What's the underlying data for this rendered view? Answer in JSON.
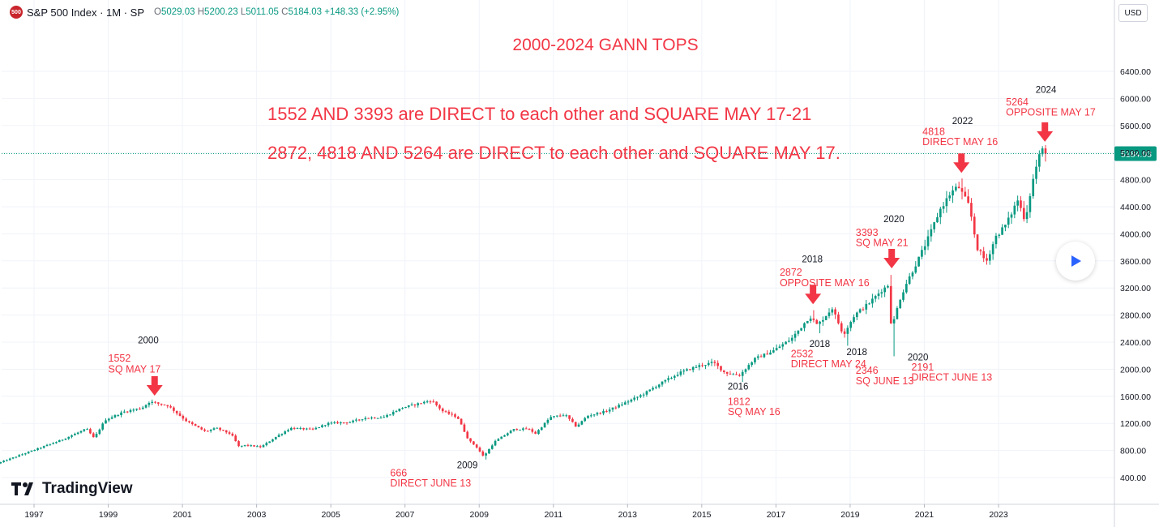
{
  "header": {
    "badge": "500",
    "symbol": "S&P 500 Index · 1M · SP",
    "open_label": "O",
    "open": "5029.03",
    "high_label": "H",
    "high": "5200.23",
    "low_label": "L",
    "low": "5011.05",
    "close_label": "C",
    "close": "5184.03",
    "change": "+148.33 (+2.95%)"
  },
  "currency": "USD",
  "brand": "TradingView",
  "colors": {
    "up": "#089981",
    "down": "#f23645",
    "annotation": "#f23645",
    "last_price": "#089981"
  },
  "chart_data": {
    "type": "candlestick",
    "title": "2000-2024 GANN TOPS",
    "subtitle_lines": [
      "1552 AND 3393 are DIRECT to each other and SQUARE MAY 17-21",
      "2872, 4818 AND 5264 are DIRECT to each other and SQUARE MAY 17."
    ],
    "ylim": [
      200,
      6800
    ],
    "y_ticks": [
      400,
      800,
      1200,
      1600,
      2000,
      2400,
      2800,
      3200,
      3600,
      4000,
      4400,
      4800,
      5200,
      5600,
      6000,
      6400
    ],
    "y_tick_labels": [
      "400.00",
      "800.00",
      "1200.00",
      "1600.00",
      "2000.00",
      "2400.00",
      "2800.00",
      "3200.00",
      "3600.00",
      "4000.00",
      "4400.00",
      "4800.00",
      "5200.00",
      "5600.00",
      "6000.00",
      "6400.00"
    ],
    "x_range": [
      1996.1,
      2025.9
    ],
    "x_ticks": [
      1997,
      1999,
      2001,
      2003,
      2005,
      2007,
      2009,
      2011,
      2013,
      2015,
      2017,
      2019,
      2021,
      2023
    ],
    "x_tick_labels": [
      "1997",
      "1999",
      "2001",
      "2003",
      "2005",
      "2007",
      "2009",
      "2011",
      "2013",
      "2015",
      "2017",
      "2019",
      "2021",
      "2023"
    ],
    "last_price": 5184.03,
    "last_price_label": "5184.03",
    "anchors": [
      [
        1996.1,
        610
      ],
      [
        1997.0,
        790
      ],
      [
        1997.8,
        950
      ],
      [
        1998.5,
        1120
      ],
      [
        1998.7,
        980
      ],
      [
        1999.0,
        1250
      ],
      [
        1999.5,
        1370
      ],
      [
        2000.0,
        1430
      ],
      [
        2000.2,
        1520
      ],
      [
        2000.7,
        1460
      ],
      [
        2001.2,
        1230
      ],
      [
        2001.7,
        1080
      ],
      [
        2002.0,
        1130
      ],
      [
        2002.4,
        1040
      ],
      [
        2002.6,
        860
      ],
      [
        2002.8,
        880
      ],
      [
        2003.2,
        850
      ],
      [
        2003.6,
        1000
      ],
      [
        2004.0,
        1130
      ],
      [
        2004.6,
        1110
      ],
      [
        2005.0,
        1200
      ],
      [
        2005.6,
        1220
      ],
      [
        2006.0,
        1280
      ],
      [
        2006.5,
        1290
      ],
      [
        2007.0,
        1430
      ],
      [
        2007.5,
        1500
      ],
      [
        2007.8,
        1540
      ],
      [
        2008.1,
        1380
      ],
      [
        2008.5,
        1290
      ],
      [
        2008.8,
        950
      ],
      [
        2009.0,
        860
      ],
      [
        2009.2,
        710
      ],
      [
        2009.5,
        930
      ],
      [
        2010.0,
        1110
      ],
      [
        2010.4,
        1120
      ],
      [
        2010.6,
        1050
      ],
      [
        2011.0,
        1290
      ],
      [
        2011.4,
        1330
      ],
      [
        2011.7,
        1150
      ],
      [
        2012.0,
        1310
      ],
      [
        2012.5,
        1380
      ],
      [
        2013.0,
        1500
      ],
      [
        2013.5,
        1630
      ],
      [
        2014.0,
        1800
      ],
      [
        2014.5,
        1950
      ],
      [
        2015.0,
        2050
      ],
      [
        2015.4,
        2100
      ],
      [
        2015.7,
        1950
      ],
      [
        2016.1,
        1910
      ],
      [
        2016.5,
        2150
      ],
      [
        2017.0,
        2270
      ],
      [
        2017.5,
        2450
      ],
      [
        2018.0,
        2780
      ],
      [
        2018.2,
        2650
      ],
      [
        2018.6,
        2900
      ],
      [
        2018.9,
        2510
      ],
      [
        2019.2,
        2800
      ],
      [
        2019.6,
        2980
      ],
      [
        2019.9,
        3150
      ],
      [
        2020.1,
        3240
      ],
      [
        2020.2,
        2590
      ],
      [
        2020.4,
        3000
      ],
      [
        2020.6,
        3270
      ],
      [
        2020.9,
        3600
      ],
      [
        2021.2,
        3950
      ],
      [
        2021.5,
        4350
      ],
      [
        2021.8,
        4610
      ],
      [
        2022.0,
        4700
      ],
      [
        2022.3,
        4400
      ],
      [
        2022.5,
        3800
      ],
      [
        2022.75,
        3580
      ],
      [
        2023.0,
        3950
      ],
      [
        2023.3,
        4150
      ],
      [
        2023.6,
        4500
      ],
      [
        2023.8,
        4200
      ],
      [
        2024.0,
        4770
      ],
      [
        2024.15,
        5100
      ],
      [
        2024.25,
        5250
      ],
      [
        2024.33,
        5184
      ]
    ],
    "highlight_highs": [
      [
        2000.2,
        1552
      ],
      [
        2018.05,
        2872
      ],
      [
        2020.12,
        3393
      ],
      [
        2021.98,
        4818
      ],
      [
        2024.25,
        5264
      ]
    ],
    "highlight_lows": [
      [
        2009.2,
        666
      ],
      [
        2016.1,
        1812
      ],
      [
        2018.2,
        2532
      ],
      [
        2018.95,
        2346
      ],
      [
        2020.2,
        2191
      ]
    ],
    "annotations": [
      {
        "type": "arrow",
        "x": 2000.25,
        "y": 1610
      },
      {
        "type": "text",
        "x": 1999.8,
        "y": 2385,
        "text": "2000",
        "color": "black"
      },
      {
        "type": "text",
        "x": 1999.0,
        "y": 2110,
        "text": "1552",
        "color": "red"
      },
      {
        "type": "text",
        "x": 1999.0,
        "y": 1950,
        "text": "SQ MAY 17",
        "color": "red"
      },
      {
        "type": "text",
        "x": 2008.4,
        "y": 540,
        "text": "2009",
        "color": "black"
      },
      {
        "type": "text",
        "x": 2006.6,
        "y": 420,
        "text": "666",
        "color": "red"
      },
      {
        "type": "text",
        "x": 2006.6,
        "y": 270,
        "text": "DIRECT JUNE 13",
        "color": "red"
      },
      {
        "type": "text",
        "x": 2015.7,
        "y": 1700,
        "text": "2016",
        "color": "black"
      },
      {
        "type": "text",
        "x": 2015.7,
        "y": 1470,
        "text": "1812",
        "color": "red"
      },
      {
        "type": "text",
        "x": 2015.7,
        "y": 1320,
        "text": "SQ MAY 16",
        "color": "red"
      },
      {
        "type": "arrow",
        "x": 2018.0,
        "y": 2960
      },
      {
        "type": "text",
        "x": 2017.7,
        "y": 3580,
        "text": "2018",
        "color": "black"
      },
      {
        "type": "text",
        "x": 2017.1,
        "y": 3380,
        "text": "2872",
        "color": "red"
      },
      {
        "type": "text",
        "x": 2017.1,
        "y": 3225,
        "text": "OPPOSITE MAY 16",
        "color": "red"
      },
      {
        "type": "text",
        "x": 2017.9,
        "y": 2330,
        "text": "2018",
        "color": "black"
      },
      {
        "type": "text",
        "x": 2017.4,
        "y": 2180,
        "text": "2532",
        "color": "red"
      },
      {
        "type": "text",
        "x": 2017.4,
        "y": 2030,
        "text": "DIRECT MAY 24",
        "color": "red"
      },
      {
        "type": "text",
        "x": 2018.9,
        "y": 2210,
        "text": "2018",
        "color": "black"
      },
      {
        "type": "text",
        "x": 2019.15,
        "y": 1930,
        "text": "2346",
        "color": "red"
      },
      {
        "type": "text",
        "x": 2019.15,
        "y": 1780,
        "text": "SQ JUNE 13",
        "color": "red"
      },
      {
        "type": "arrow",
        "x": 2020.12,
        "y": 3490
      },
      {
        "type": "text",
        "x": 2019.9,
        "y": 4170,
        "text": "2020",
        "color": "black"
      },
      {
        "type": "text",
        "x": 2019.15,
        "y": 3970,
        "text": "3393",
        "color": "red"
      },
      {
        "type": "text",
        "x": 2019.15,
        "y": 3820,
        "text": "SQ MAY 21",
        "color": "red"
      },
      {
        "type": "text",
        "x": 2020.55,
        "y": 2130,
        "text": "2020",
        "color": "black"
      },
      {
        "type": "text",
        "x": 2020.65,
        "y": 1980,
        "text": "2191",
        "color": "red"
      },
      {
        "type": "text",
        "x": 2020.65,
        "y": 1830,
        "text": "DIRECT JUNE 13",
        "color": "red"
      },
      {
        "type": "arrow",
        "x": 2022.0,
        "y": 4900
      },
      {
        "type": "text",
        "x": 2021.75,
        "y": 5620,
        "text": "2022",
        "color": "black"
      },
      {
        "type": "text",
        "x": 2020.95,
        "y": 5460,
        "text": "4818",
        "color": "red"
      },
      {
        "type": "text",
        "x": 2020.95,
        "y": 5310,
        "text": "DIRECT MAY 16",
        "color": "red"
      },
      {
        "type": "arrow",
        "x": 2024.25,
        "y": 5360
      },
      {
        "type": "text",
        "x": 2024.0,
        "y": 6080,
        "text": "2024",
        "color": "black"
      },
      {
        "type": "text",
        "x": 2023.2,
        "y": 5900,
        "text": "5264",
        "color": "red"
      },
      {
        "type": "text",
        "x": 2023.2,
        "y": 5750,
        "text": "OPPOSITE MAY 17",
        "color": "red"
      }
    ]
  }
}
